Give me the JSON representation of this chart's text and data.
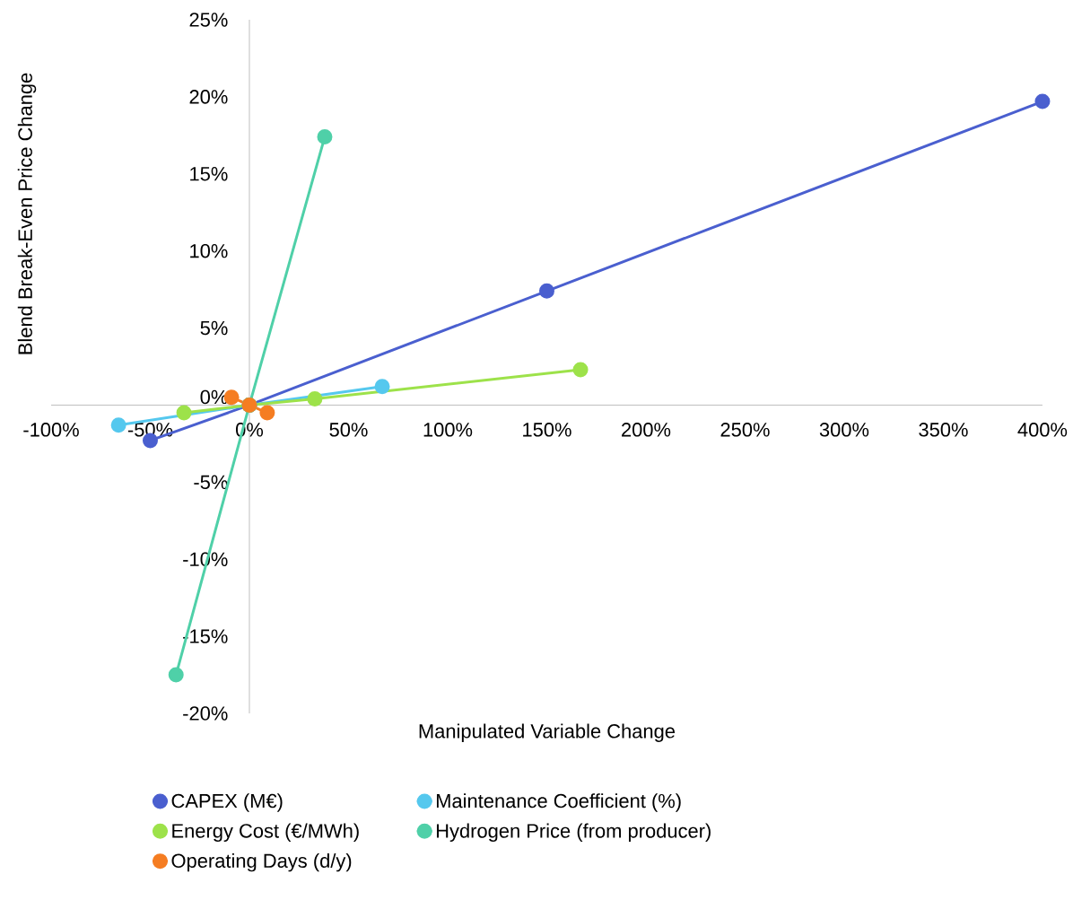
{
  "chart_data": {
    "type": "line",
    "xlabel": "Manipulated Variable Change",
    "ylabel": "Blend Break-Even Price Change",
    "xlim": [
      -100,
      400
    ],
    "ylim": [
      -20,
      25
    ],
    "xticks": [
      {
        "value": -100,
        "label": "-100%"
      },
      {
        "value": -50,
        "label": "-50%"
      },
      {
        "value": 0,
        "label": "0%"
      },
      {
        "value": 50,
        "label": "50%"
      },
      {
        "value": 100,
        "label": "100%"
      },
      {
        "value": 150,
        "label": "150%"
      },
      {
        "value": 200,
        "label": "200%"
      },
      {
        "value": 250,
        "label": "250%"
      },
      {
        "value": 300,
        "label": "300%"
      },
      {
        "value": 350,
        "label": "350%"
      },
      {
        "value": 400,
        "label": "400%"
      }
    ],
    "yticks": [
      {
        "value": -20,
        "label": "-20%"
      },
      {
        "value": -15,
        "label": "-15%"
      },
      {
        "value": -10,
        "label": "-10%"
      },
      {
        "value": -5,
        "label": "-5%"
      },
      {
        "value": 0,
        "label": "0%"
      },
      {
        "value": 5,
        "label": "5%"
      },
      {
        "value": 10,
        "label": "10%"
      },
      {
        "value": 15,
        "label": "15%"
      },
      {
        "value": 20,
        "label": "20%"
      },
      {
        "value": 25,
        "label": "25%"
      }
    ],
    "marker": "circle",
    "line_style": "solid",
    "legend": "bottom",
    "series": [
      {
        "name": "CAPEX (M€)",
        "color": "#4a5fcf",
        "x": [
          -50,
          0,
          150,
          400
        ],
        "values": [
          -2.3,
          0,
          7.4,
          19.7
        ]
      },
      {
        "name": "Maintenance Coefficient (%)",
        "color": "#55c8ee",
        "x": [
          -66,
          0,
          67
        ],
        "values": [
          -1.3,
          0,
          1.2
        ]
      },
      {
        "name": "Energy Cost (€/MWh)",
        "color": "#9de24a",
        "x": [
          -33,
          0,
          33,
          167
        ],
        "values": [
          -0.5,
          0,
          0.4,
          2.3
        ]
      },
      {
        "name": "Hydrogen Price (from producer)",
        "color": "#4fd0a8",
        "x": [
          -37,
          0,
          38
        ],
        "values": [
          -17.5,
          0,
          17.4
        ]
      },
      {
        "name": "Operating Days (d/y)",
        "color": "#f57d22",
        "x": [
          -9,
          0,
          9
        ],
        "values": [
          0.5,
          0,
          -0.5
        ]
      }
    ]
  }
}
